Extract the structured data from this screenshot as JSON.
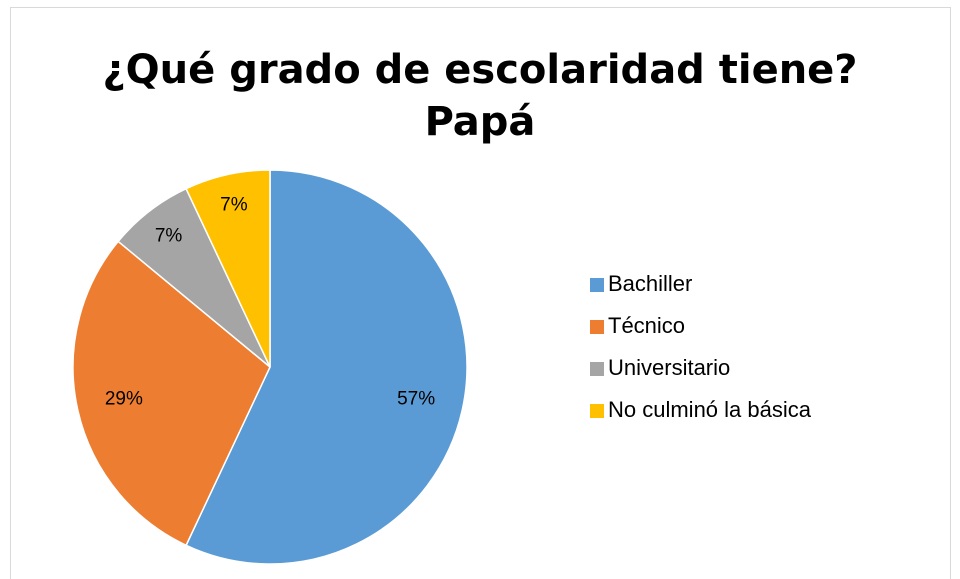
{
  "chart_data": {
    "type": "pie",
    "title": "¿Qué grado de escolaridad tiene?",
    "subtitle": "Papá",
    "categories": [
      "Bachiller",
      "Técnico",
      "Universitario",
      "No culminó la básica"
    ],
    "values": [
      57,
      29,
      7,
      7
    ],
    "value_labels": [
      "57%",
      "29%",
      "7%",
      "7%"
    ],
    "colors": [
      "#5b9bd5",
      "#ed7d31",
      "#a5a5a5",
      "#ffc000"
    ],
    "legend": "right"
  }
}
